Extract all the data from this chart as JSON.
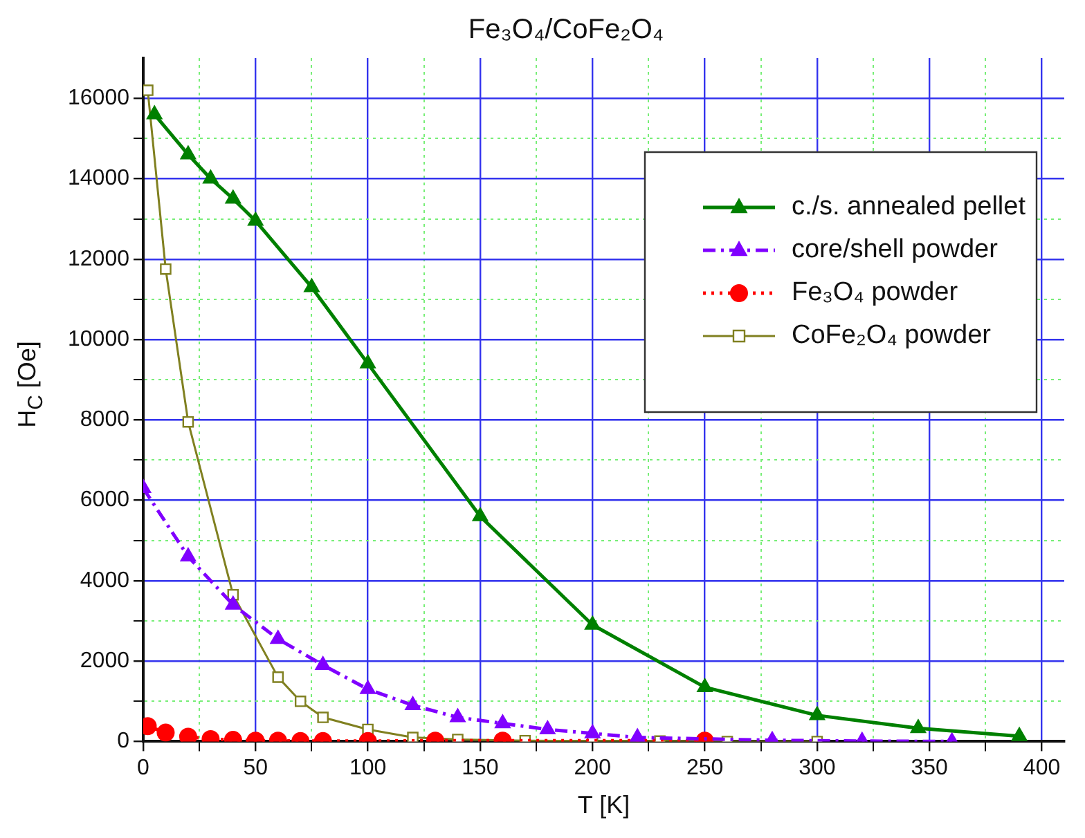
{
  "chart_data": {
    "type": "line",
    "title": "Fe₃O₄/CoFe₂O₄",
    "xlabel": "T [K]",
    "ylabel": "H$_{C}$ [Oe]",
    "xlim": [
      0,
      410
    ],
    "ylim": [
      0,
      17000
    ],
    "xticks": [
      0,
      {
        "value": 25,
        "label": null
      },
      50,
      {
        "value": 75,
        "label": null
      },
      100,
      {
        "value": 125,
        "label": null
      },
      150,
      {
        "value": 175,
        "label": null
      },
      200,
      {
        "value": 225,
        "label": null
      },
      250,
      {
        "value": 275,
        "label": null
      },
      300,
      {
        "value": 325,
        "label": null
      },
      350,
      {
        "value": 375,
        "label": null
      },
      400
    ],
    "yticks": [
      0,
      {
        "value": 1000,
        "label": null
      },
      2000,
      {
        "value": 3000,
        "label": null
      },
      4000,
      {
        "value": 5000,
        "label": null
      },
      6000,
      {
        "value": 7000,
        "label": null
      },
      8000,
      {
        "value": 9000,
        "label": null
      },
      10000,
      {
        "value": 11000,
        "label": null
      },
      12000,
      {
        "value": 13000,
        "label": null
      },
      14000,
      {
        "value": 15000,
        "label": null
      },
      16000
    ],
    "grid": true,
    "legend": "top right",
    "series": [
      {
        "name": "c./s. annealed pellet",
        "color": "#008000",
        "marker": "triangle",
        "line_style": "solid",
        "x": [
          5,
          20,
          30,
          40,
          50,
          75,
          100,
          150,
          200,
          250,
          300,
          345,
          390
        ],
        "values": [
          15600,
          14600,
          14000,
          13500,
          12950,
          11300,
          9400,
          5600,
          2900,
          1350,
          650,
          330,
          130
        ]
      },
      {
        "name": "core/shell powder",
        "color": "#8000ff",
        "marker": "triangle",
        "line_style": "dashed",
        "x": [
          0,
          20,
          40,
          60,
          80,
          100,
          120,
          140,
          160,
          180,
          200,
          220,
          280,
          320,
          360
        ],
        "values": [
          6300,
          4600,
          3400,
          2550,
          1900,
          1300,
          900,
          600,
          450,
          300,
          200,
          100,
          30,
          10,
          0
        ]
      },
      {
        "name": "Fe₃O₄ powder",
        "color": "#ff0000",
        "marker": "circle",
        "line_style": "dotted",
        "x": [
          2,
          10,
          20,
          30,
          40,
          50,
          60,
          70,
          80,
          100,
          130,
          160,
          250
        ],
        "values": [
          380,
          220,
          120,
          60,
          40,
          20,
          20,
          10,
          10,
          10,
          20,
          20,
          20
        ]
      },
      {
        "name": "CoFe₂O₄ powder",
        "color": "#808020",
        "marker": "square",
        "line_style": "solid",
        "x": [
          2,
          10,
          20,
          40,
          60,
          70,
          80,
          100,
          120,
          140,
          170,
          200,
          230,
          260,
          300
        ],
        "values": [
          16200,
          11750,
          7950,
          3650,
          1600,
          1000,
          600,
          300,
          100,
          50,
          20,
          10,
          10,
          0,
          0
        ]
      }
    ]
  }
}
